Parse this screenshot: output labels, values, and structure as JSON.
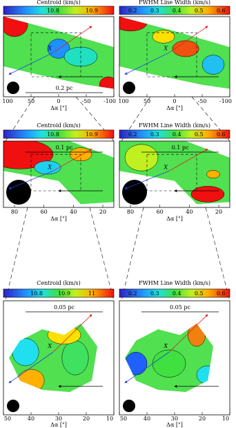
{
  "panels": [
    {
      "colorbar_title": "Centroid (km/s)",
      "colorbar_ticks": [
        "10.8",
        "10.9"
      ],
      "scale_label": "0.2 pc",
      "marker": "X",
      "x_ticks": [
        "100",
        "50",
        "0",
        "-50",
        "-100"
      ],
      "x_label": "Δα [\"]"
    },
    {
      "colorbar_title": "FWHM Line Width (km/s)",
      "colorbar_ticks": [
        "0.2",
        "0.3",
        "0.4",
        "0.5",
        "0.6"
      ],
      "marker": "X",
      "x_ticks": [
        "100",
        "50",
        "0",
        "-50",
        "-100"
      ],
      "x_label": "Δα [\"]"
    },
    {
      "colorbar_title": "Centroid (km/s)",
      "colorbar_ticks": [
        "10.8",
        "10.9"
      ],
      "scale_label": "0.1 pc",
      "marker": "X",
      "x_ticks": [
        "80",
        "60",
        "40",
        "20"
      ],
      "x_label": "Δα [\"]"
    },
    {
      "colorbar_title": "FWHM Line Width (km/s)",
      "colorbar_ticks": [
        "0.2",
        "0.3",
        "0.4",
        "0.5",
        "0.6"
      ],
      "scale_label": "0.1 pc",
      "marker": "X",
      "x_ticks": [
        "80",
        "60",
        "40",
        "20"
      ],
      "x_label": "Δα [\"]"
    },
    {
      "colorbar_title": "Centroid (km/s)",
      "colorbar_ticks": [
        "10.8",
        "10.9",
        "11"
      ],
      "scale_label": "0.05 pc",
      "marker": "X",
      "x_ticks": [
        "50",
        "40",
        "30",
        "20",
        "10"
      ],
      "x_label": "Δα [\"]"
    },
    {
      "colorbar_title": "FWHM Line Width (km/s)",
      "colorbar_ticks": [
        "0.2",
        "0.3",
        "0.4",
        "0.5",
        "0.6"
      ],
      "scale_label": "0.05 pc",
      "marker": "X",
      "x_ticks": [
        "50",
        "40",
        "30",
        "20",
        "10"
      ],
      "x_label": "Δα [\"]"
    }
  ]
}
